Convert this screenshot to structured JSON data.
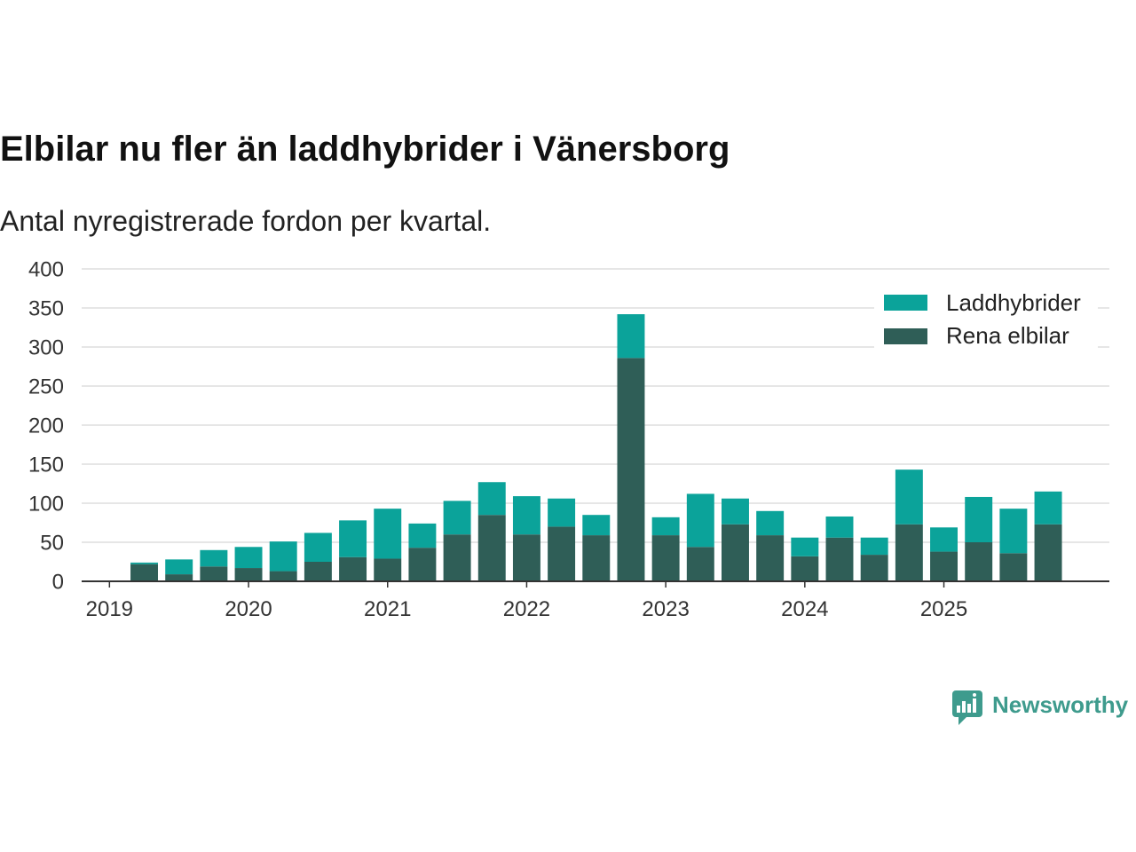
{
  "chart_data": {
    "type": "bar",
    "stacked": true,
    "title": "Elbilar nu fler än laddhybrider i Vänersborg",
    "subtitle": "Antal nyregistrerade fordon per kvartal.",
    "x": [
      2019.25,
      2019.5,
      2019.75,
      2020,
      2020.25,
      2020.5,
      2020.75,
      2021,
      2021.25,
      2021.5,
      2021.75,
      2022,
      2022.25,
      2022.5,
      2022.75,
      2023,
      2023.25,
      2023.5,
      2023.75,
      2024,
      2024.25,
      2024.5,
      2024.75,
      2025,
      2025.25,
      2025.5,
      2025.75
    ],
    "xticks": [
      2019,
      2020,
      2021,
      2022,
      2023,
      2024,
      2025
    ],
    "xlim": [
      2018.8,
      2026.19
    ],
    "yticks": [
      0,
      50,
      100,
      150,
      200,
      250,
      300,
      350,
      400
    ],
    "ylim": [
      0,
      400
    ],
    "grid": true,
    "series": [
      {
        "name": "Rena elbilar",
        "color": "#2f5e57",
        "values": [
          22,
          9,
          19,
          17,
          13,
          25,
          31,
          29,
          43,
          60,
          85,
          60,
          70,
          59,
          286,
          59,
          44,
          73,
          59,
          32,
          56,
          34,
          73,
          38,
          50,
          36,
          73
        ]
      },
      {
        "name": "Laddhybrider",
        "color": "#0ba39a",
        "values": [
          2,
          19,
          21,
          27,
          38,
          37,
          47,
          64,
          31,
          43,
          42,
          49,
          36,
          26,
          56,
          23,
          68,
          33,
          31,
          24,
          27,
          22,
          70,
          31,
          58,
          57,
          42
        ]
      }
    ]
  },
  "branding": {
    "logo_text": "Newsworthy",
    "color": "#3e9b8d"
  }
}
